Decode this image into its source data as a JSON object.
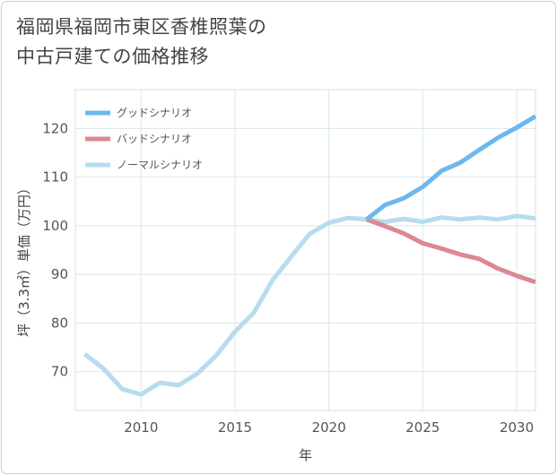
{
  "title_line1": "福岡県福岡市東区香椎照葉の",
  "title_line2": "中古戸建ての価格推移",
  "chart_data": {
    "type": "line",
    "xlabel": "年",
    "ylabel": "坪（3.3㎡）単価（万円）",
    "xlim": [
      2006.5,
      2031
    ],
    "ylim": [
      62,
      128
    ],
    "xticks": [
      2010,
      2015,
      2020,
      2025,
      2030
    ],
    "yticks": [
      70,
      80,
      90,
      100,
      110,
      120
    ],
    "grid": true,
    "legend_position": "top-left",
    "series": [
      {
        "name": "グッドシナリオ",
        "color": "#6cb8ee",
        "x": [
          2022,
          2023,
          2024,
          2025,
          2026,
          2027,
          2028,
          2029,
          2030,
          2031
        ],
        "values": [
          101.3,
          104.3,
          105.7,
          108.0,
          111.3,
          113.0,
          115.6,
          118.1,
          120.2,
          122.5
        ]
      },
      {
        "name": "バッドシナリオ",
        "color": "#dc8890",
        "x": [
          2022,
          2023,
          2024,
          2025,
          2026,
          2027,
          2028,
          2029,
          2030,
          2031
        ],
        "values": [
          101.3,
          99.9,
          98.4,
          96.4,
          95.3,
          94.1,
          93.2,
          91.2,
          89.7,
          88.4
        ]
      },
      {
        "name": "ノーマルシナリオ",
        "color": "#b7dcee",
        "x": [
          2007,
          2008,
          2009,
          2010,
          2011,
          2012,
          2013,
          2014,
          2015,
          2016,
          2017,
          2018,
          2019,
          2020,
          2021,
          2022,
          2023,
          2024,
          2025,
          2026,
          2027,
          2028,
          2029,
          2030,
          2031
        ],
        "values": [
          73.6,
          70.6,
          66.4,
          65.3,
          67.7,
          67.2,
          69.6,
          73.3,
          78.2,
          82.1,
          88.8,
          93.7,
          98.4,
          100.6,
          101.6,
          101.3,
          100.8,
          101.4,
          100.8,
          101.7,
          101.3,
          101.7,
          101.3,
          102.0,
          101.5
        ]
      }
    ]
  }
}
